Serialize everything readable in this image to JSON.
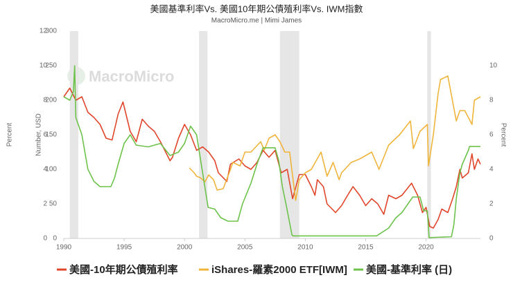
{
  "chart_data": {
    "type": "line",
    "title": "美國基準利率Vs. 美國10年期公債殖利率Vs. IWM指數",
    "subtitle": "MacroMicro.me | Mimi James",
    "watermark": "MacroMicro",
    "ylabel": "Percent",
    "y2label": "Number, USD",
    "y3label": "Percent",
    "xlim": [
      1990,
      2024.5
    ],
    "xticks": [
      1990,
      1995,
      2000,
      2005,
      2010,
      2015,
      2020
    ],
    "ylim": [
      0,
      12
    ],
    "yticks": [
      0,
      2,
      4,
      6,
      8,
      10,
      12
    ],
    "y2lim": [
      0,
      300
    ],
    "y2ticks": [
      0,
      50,
      100,
      150,
      200,
      250,
      300
    ],
    "y3lim": [
      0,
      12
    ],
    "y3ticks": [
      0,
      2,
      4,
      6,
      8,
      10
    ],
    "recessions": [
      [
        1990.5,
        1991.2
      ],
      [
        2001.2,
        2001.9
      ],
      [
        2007.9,
        2009.5
      ],
      [
        2020.1,
        2020.4
      ]
    ],
    "recession_color": "#e6e6e6",
    "series": [
      {
        "name": "美國-10年期公債殖利率",
        "color": "#e0452a",
        "axis": "y",
        "x": [
          1990,
          1990.5,
          1991,
          1991.5,
          1992,
          1992.5,
          1993,
          1993.5,
          1994,
          1994.5,
          1994.9,
          1995.5,
          1996,
          1996.5,
          1997,
          1997.5,
          1998,
          1998.8,
          1999,
          1999.5,
          2000,
          2000.5,
          2001,
          2001.5,
          2002,
          2002.5,
          2002.8,
          2003.5,
          2003.8,
          2004.5,
          2005,
          2005.5,
          2006,
          2006.5,
          2007,
          2007.5,
          2008,
          2008.5,
          2008.95,
          2009.5,
          2010,
          2010.5,
          2010.8,
          2011,
          2011.5,
          2011.8,
          2012.5,
          2013,
          2013.5,
          2013.95,
          2014.5,
          2015,
          2015.5,
          2016,
          2016.5,
          2016.9,
          2017.5,
          2018,
          2018.8,
          2019.3,
          2019.7,
          2020,
          2020.3,
          2020.6,
          2021,
          2021.3,
          2021.8,
          2022.2,
          2022.5,
          2022.8,
          2023,
          2023.5,
          2023.8,
          2024,
          2024.3,
          2024.5
        ],
        "values": [
          8.2,
          8.7,
          8.0,
          8.2,
          7.3,
          7.0,
          6.6,
          5.8,
          5.7,
          7.2,
          7.9,
          6.2,
          5.6,
          6.9,
          6.5,
          6.2,
          5.6,
          4.5,
          4.7,
          5.8,
          6.6,
          6.0,
          5.1,
          5.3,
          5.0,
          4.5,
          3.8,
          3.3,
          4.3,
          4.6,
          4.2,
          4.0,
          4.4,
          5.1,
          4.7,
          5.1,
          3.8,
          4.0,
          2.3,
          3.7,
          3.7,
          3.0,
          2.5,
          3.4,
          3.0,
          2.0,
          1.5,
          1.9,
          2.5,
          3.0,
          2.5,
          1.9,
          2.3,
          2.0,
          1.4,
          2.5,
          2.3,
          2.5,
          3.2,
          2.5,
          1.5,
          1.8,
          0.7,
          0.6,
          1.1,
          1.7,
          1.5,
          2.3,
          3.0,
          4.0,
          3.5,
          3.8,
          4.9,
          4.0,
          4.6,
          4.3
        ]
      },
      {
        "name": "iShares-羅素2000 ETF[IWM]",
        "color": "#f0b43a",
        "axis": "y2",
        "x": [
          2000.4,
          2000.8,
          2001,
          2001.3,
          2001.7,
          2002,
          2002.4,
          2002.7,
          2003.2,
          2003.7,
          2004,
          2004.6,
          2005,
          2005.5,
          2006.3,
          2006.6,
          2007,
          2007.5,
          2007.9,
          2008.3,
          2008.7,
          2009.2,
          2009.5,
          2010,
          2010.5,
          2011.3,
          2011.8,
          2012.3,
          2012.8,
          2013,
          2013.8,
          2014.5,
          2015.5,
          2016.1,
          2016.9,
          2017.8,
          2018.7,
          2018.95,
          2019.5,
          2020.1,
          2020.2,
          2020.6,
          2021,
          2021.2,
          2021.8,
          2022.5,
          2022.8,
          2023.2,
          2023.8,
          2024,
          2024.5
        ],
        "values": [
          102,
          95,
          90,
          88,
          82,
          92,
          85,
          70,
          72,
          95,
          110,
          105,
          125,
          125,
          140,
          128,
          145,
          150,
          140,
          125,
          125,
          55,
          85,
          95,
          100,
          125,
          90,
          110,
          85,
          95,
          110,
          115,
          125,
          100,
          135,
          150,
          170,
          130,
          155,
          165,
          105,
          150,
          210,
          230,
          235,
          170,
          185,
          185,
          165,
          200,
          205
        ]
      },
      {
        "name": "美國-基準利率 (日)",
        "color": "#6cc24a",
        "axis": "y",
        "x": [
          1990,
          1990.5,
          1990.8,
          1990.9,
          1991,
          1991.5,
          1992,
          1992.5,
          1993,
          1993.9,
          1994.2,
          1994.5,
          1995,
          1995.5,
          1996,
          1997,
          1998,
          1998.8,
          1999.5,
          2000,
          2000.5,
          2001,
          2001.5,
          2001.95,
          2002.5,
          2003,
          2003.6,
          2004.4,
          2004.8,
          2005.5,
          2006,
          2006.5,
          2007.5,
          2007.8,
          2008.1,
          2008.4,
          2008.9,
          2009,
          2012,
          2015.9,
          2016.9,
          2017.5,
          2018,
          2018.9,
          2019.5,
          2019.8,
          2020.1,
          2020.25,
          2022.1,
          2022.3,
          2022.5,
          2022.8,
          2023,
          2023.5,
          2023.6,
          2024.5
        ],
        "values": [
          8.2,
          8.0,
          8.5,
          10.0,
          7.0,
          6.0,
          4.0,
          3.3,
          3.0,
          3.0,
          3.5,
          4.3,
          5.5,
          6.0,
          5.4,
          5.3,
          5.5,
          4.8,
          5.0,
          5.5,
          6.5,
          6.0,
          3.8,
          1.8,
          1.7,
          1.2,
          1.0,
          1.0,
          2.0,
          3.2,
          4.3,
          5.25,
          5.25,
          4.5,
          3.0,
          2.0,
          0.2,
          0.15,
          0.15,
          0.15,
          0.6,
          1.2,
          1.5,
          2.4,
          2.4,
          1.6,
          1.6,
          0.05,
          0.1,
          0.8,
          2.3,
          3.8,
          4.3,
          5.1,
          5.33,
          5.33
        ]
      }
    ]
  }
}
